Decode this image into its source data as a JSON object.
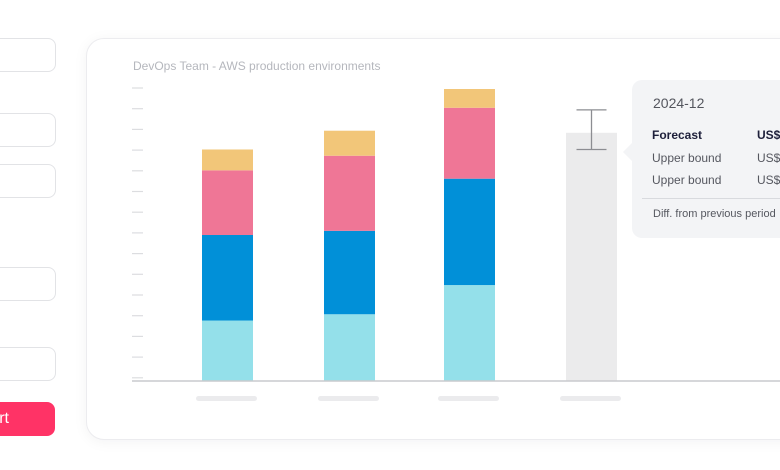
{
  "form": {
    "start_button_label": "rt"
  },
  "card": {
    "title": "DevOps Team - AWS production environments"
  },
  "tooltip": {
    "period": "2024-12",
    "rows": [
      {
        "label": "Forecast",
        "value": "US$",
        "bold": true
      },
      {
        "label": "Upper bound",
        "value": "US$",
        "bold": false
      },
      {
        "label": "Upper bound",
        "value": "US$",
        "bold": false
      }
    ],
    "diff_label": "Diff. from previous period"
  },
  "chart_data": {
    "type": "bar",
    "stacked": true,
    "categories": [
      "",
      "",
      "",
      ""
    ],
    "series": [
      {
        "color": "#94e0ea",
        "values": [
          29,
          32,
          46,
          0
        ]
      },
      {
        "color": "#0190d8",
        "values": [
          41,
          40,
          51,
          0
        ]
      },
      {
        "color": "#ef7696",
        "values": [
          31,
          36,
          34,
          0
        ]
      },
      {
        "color": "#f2c679",
        "values": [
          10,
          12,
          9,
          0
        ]
      }
    ],
    "forecast": {
      "category_index": 3,
      "value": 119,
      "upper": 130,
      "lower": 111,
      "color": "#ebebec"
    },
    "ylim": [
      0,
      140
    ],
    "grid": false
  }
}
